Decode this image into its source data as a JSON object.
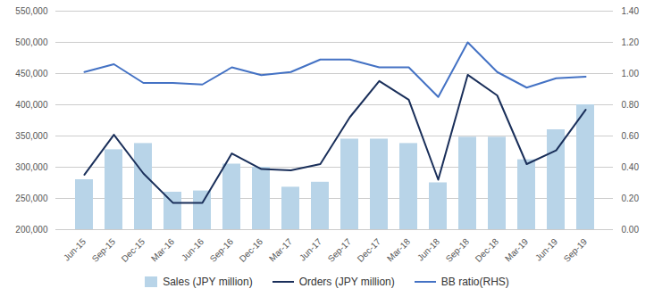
{
  "chart_data": {
    "type": "bar",
    "categories": [
      "Jun-15",
      "Sep-15",
      "Dec-15",
      "Mar-16",
      "Jun-16",
      "Sep-16",
      "Dec-16",
      "Mar-17",
      "Jun-17",
      "Sep-17",
      "Dec-17",
      "Mar-18",
      "Jun-18",
      "Sep-18",
      "Dec-18",
      "Mar-19",
      "Jun-19",
      "Sep-19"
    ],
    "series": [
      {
        "name": "Sales (JPY million)",
        "type": "bar",
        "color": "#b8d4e8",
        "values": [
          280000,
          328000,
          338000,
          260000,
          262000,
          305000,
          300000,
          268000,
          276000,
          345000,
          345000,
          338000,
          275000,
          348000,
          348000,
          312000,
          360000,
          400000
        ]
      },
      {
        "name": "Orders (JPY million)",
        "type": "line",
        "color": "#1a2f5a",
        "values": [
          288000,
          352000,
          290000,
          243000,
          243000,
          322000,
          297000,
          295000,
          305000,
          380000,
          438000,
          408000,
          280000,
          448000,
          415000,
          305000,
          327000,
          392000
        ]
      },
      {
        "name": "BB ratio(RHS)",
        "type": "line",
        "color": "#4472c4",
        "axis": "y2",
        "values": [
          1.01,
          1.06,
          0.94,
          0.94,
          0.93,
          1.04,
          0.99,
          1.01,
          1.09,
          1.09,
          1.04,
          1.04,
          0.85,
          1.2,
          1.01,
          0.91,
          0.97,
          0.98
        ]
      }
    ],
    "ylim": [
      200000,
      550000
    ],
    "yticks": [
      {
        "value": 200000,
        "label": "200,000"
      },
      {
        "value": 250000,
        "label": "250,000"
      },
      {
        "value": 300000,
        "label": "300,000"
      },
      {
        "value": 350000,
        "label": "350,000"
      },
      {
        "value": 400000,
        "label": "400,000"
      },
      {
        "value": 450000,
        "label": "450,000"
      },
      {
        "value": 500000,
        "label": "500,000"
      },
      {
        "value": 550000,
        "label": "550,000"
      }
    ],
    "y2lim": [
      0.0,
      1.4
    ],
    "y2ticks": [
      {
        "value": 0.0,
        "label": "0.00"
      },
      {
        "value": 0.2,
        "label": "0.20"
      },
      {
        "value": 0.4,
        "label": "0.40"
      },
      {
        "value": 0.6,
        "label": "0.60"
      },
      {
        "value": 0.8,
        "label": "0.80"
      },
      {
        "value": 1.0,
        "label": "1.00"
      },
      {
        "value": 1.2,
        "label": "1.20"
      },
      {
        "value": 1.4,
        "label": "1.40"
      }
    ],
    "grid": true,
    "legend": "bottom"
  }
}
